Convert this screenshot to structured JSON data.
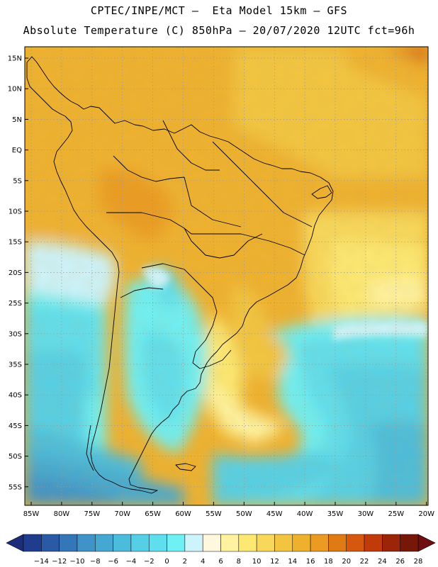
{
  "header": {
    "line1": "CPTEC/INPE/MCT –  Eta Model 15km – GFS",
    "line2": "Absolute Temperature (C) 850hPa – 20/07/2020 12UTC fct=96h"
  },
  "map": {
    "lat_labels": [
      "15N",
      "10N",
      "5N",
      "EQ",
      "5S",
      "10S",
      "15S",
      "20S",
      "25S",
      "30S",
      "35S",
      "40S",
      "45S",
      "50S",
      "55S"
    ],
    "lon_labels": [
      "85W",
      "80W",
      "75W",
      "70W",
      "65W",
      "60W",
      "55W",
      "50W",
      "45W",
      "40W",
      "35W",
      "30W",
      "25W",
      "20W"
    ]
  },
  "colorbar": {
    "labels": [
      "-14",
      "-12",
      "-10",
      "-8",
      "-6",
      "-4",
      "-2",
      "0",
      "2",
      "4",
      "6",
      "8",
      "10",
      "12",
      "14",
      "16",
      "18",
      "20",
      "22",
      "24",
      "26",
      "28"
    ],
    "colors": [
      "#1f3c8f",
      "#2a5aa6",
      "#3377b8",
      "#3f93c8",
      "#45a8d2",
      "#4cbcdc",
      "#55cfe6",
      "#5fdeee",
      "#6ef0f5",
      "#cdf3fb",
      "#fff8de",
      "#fff3a0",
      "#fde872",
      "#f8d75a",
      "#f3c440",
      "#efb02e",
      "#eb9b22",
      "#e07a14",
      "#d6580e",
      "#c03a0a",
      "#9c2408",
      "#751807"
    ],
    "left_arrow_color": "#1c2e7a",
    "right_arrow_color": "#6e0e10"
  }
}
